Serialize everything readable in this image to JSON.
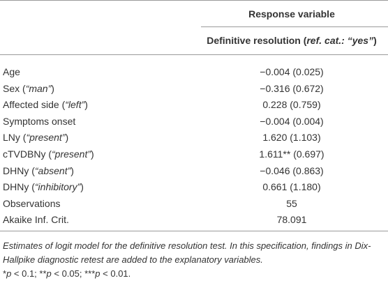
{
  "table": {
    "header": {
      "group": "Response variable",
      "column": [
        "Definitive resolution (",
        "ref. cat.: “yes”",
        ")"
      ]
    },
    "rows": [
      {
        "label": [
          "Age"
        ],
        "value": "−0.004 (0.025)"
      },
      {
        "label": [
          "Sex (",
          "“man”",
          ")"
        ],
        "value": "−0.316 (0.672)"
      },
      {
        "label": [
          "Affected side (",
          "“left”",
          ")"
        ],
        "value": "0.228 (0.759)"
      },
      {
        "label": [
          "Symptoms onset"
        ],
        "value": "−0.004 (0.004)"
      },
      {
        "label": [
          "LNy (",
          "“present”",
          ")"
        ],
        "value": "1.620 (1.103)"
      },
      {
        "label": [
          "cTVDBNy (",
          "“present”",
          ")"
        ],
        "value": "1.611** (0.697)"
      },
      {
        "label": [
          "DHNy (",
          "“absent”",
          ")"
        ],
        "value": "−0.046 (0.863)"
      },
      {
        "label": [
          "DHNy (",
          "“inhibitory”",
          ")"
        ],
        "value": "0.661 (1.180)"
      },
      {
        "label": [
          "Observations"
        ],
        "value": "55"
      },
      {
        "label": [
          "Akaike Inf. Crit."
        ],
        "value": "78.091"
      }
    ],
    "note": "Estimates of logit model for the definitive resolution test. In this specification, findings in Dix-Hallpike diagnostic retest are added to the explanatory variables.",
    "significance": [
      "*",
      "p",
      " < 0.1; **",
      "p",
      " < 0.05; ***",
      "p",
      " < 0.01."
    ]
  }
}
